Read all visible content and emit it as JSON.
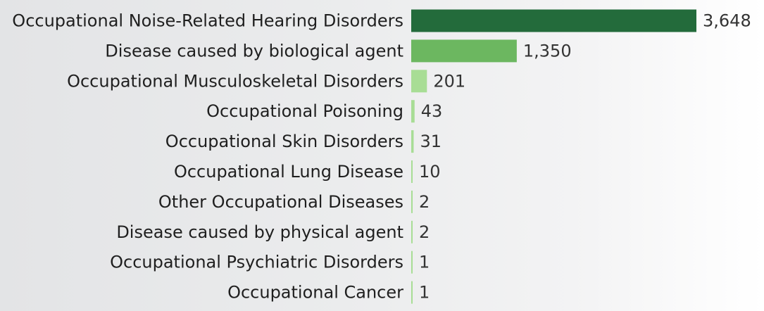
{
  "chart_data": {
    "type": "bar",
    "orientation": "horizontal",
    "title": "",
    "xlabel": "",
    "ylabel": "",
    "grid": false,
    "legend": "none",
    "categories": [
      "Occupational Noise-Related Hearing Disorders",
      "Disease caused by biological agent",
      "Occupational Musculoskeletal Disorders",
      "Occupational Poisoning",
      "Occupational Skin Disorders",
      "Occupational Lung Disease",
      "Other Occupational Diseases",
      "Disease caused by physical agent",
      "Occupational Psychiatric Disorders",
      "Occupational Cancer"
    ],
    "values": [
      3648,
      1350,
      201,
      43,
      31,
      10,
      2,
      2,
      1,
      1
    ],
    "value_labels": [
      "3,648",
      "1,350",
      "201",
      "43",
      "31",
      "10",
      "2",
      "2",
      "1",
      "1"
    ],
    "xlim": [
      0,
      3648
    ],
    "colors": {
      "high": "#236b3b",
      "mid": "#6cb760",
      "low": "#a8dd95"
    }
  }
}
